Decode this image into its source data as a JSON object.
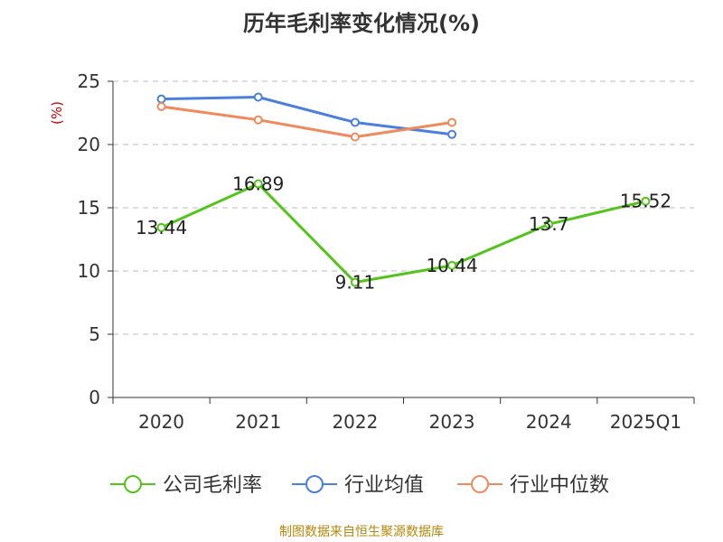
{
  "title": "历年毛利率变化情况(%)",
  "source": "制图数据来自恒生聚源数据库",
  "chart_data": {
    "type": "line",
    "title": "历年毛利率变化情况(%)",
    "ylabel": "(%)",
    "xlabel": "",
    "categories": [
      "2020",
      "2021",
      "2022",
      "2023",
      "2024",
      "2025Q1"
    ],
    "ylim": [
      0,
      25
    ],
    "yticks": [
      0,
      5,
      10,
      15,
      20,
      25
    ],
    "grid": true,
    "legend_position": "bottom",
    "series": [
      {
        "name": "公司毛利率",
        "color": "#52c41a",
        "values": [
          13.44,
          16.89,
          9.11,
          10.44,
          13.7,
          15.52
        ],
        "labels": [
          "13.44",
          "16.89",
          "9.11",
          "10.44",
          "13.7",
          "15.52"
        ]
      },
      {
        "name": "行业均值",
        "color": "#4a7fdb",
        "values": [
          23.6,
          23.75,
          21.75,
          20.8,
          null,
          null
        ]
      },
      {
        "name": "行业中位数",
        "color": "#f08a5d",
        "values": [
          23.0,
          21.95,
          20.6,
          21.75,
          null,
          null
        ]
      }
    ]
  }
}
